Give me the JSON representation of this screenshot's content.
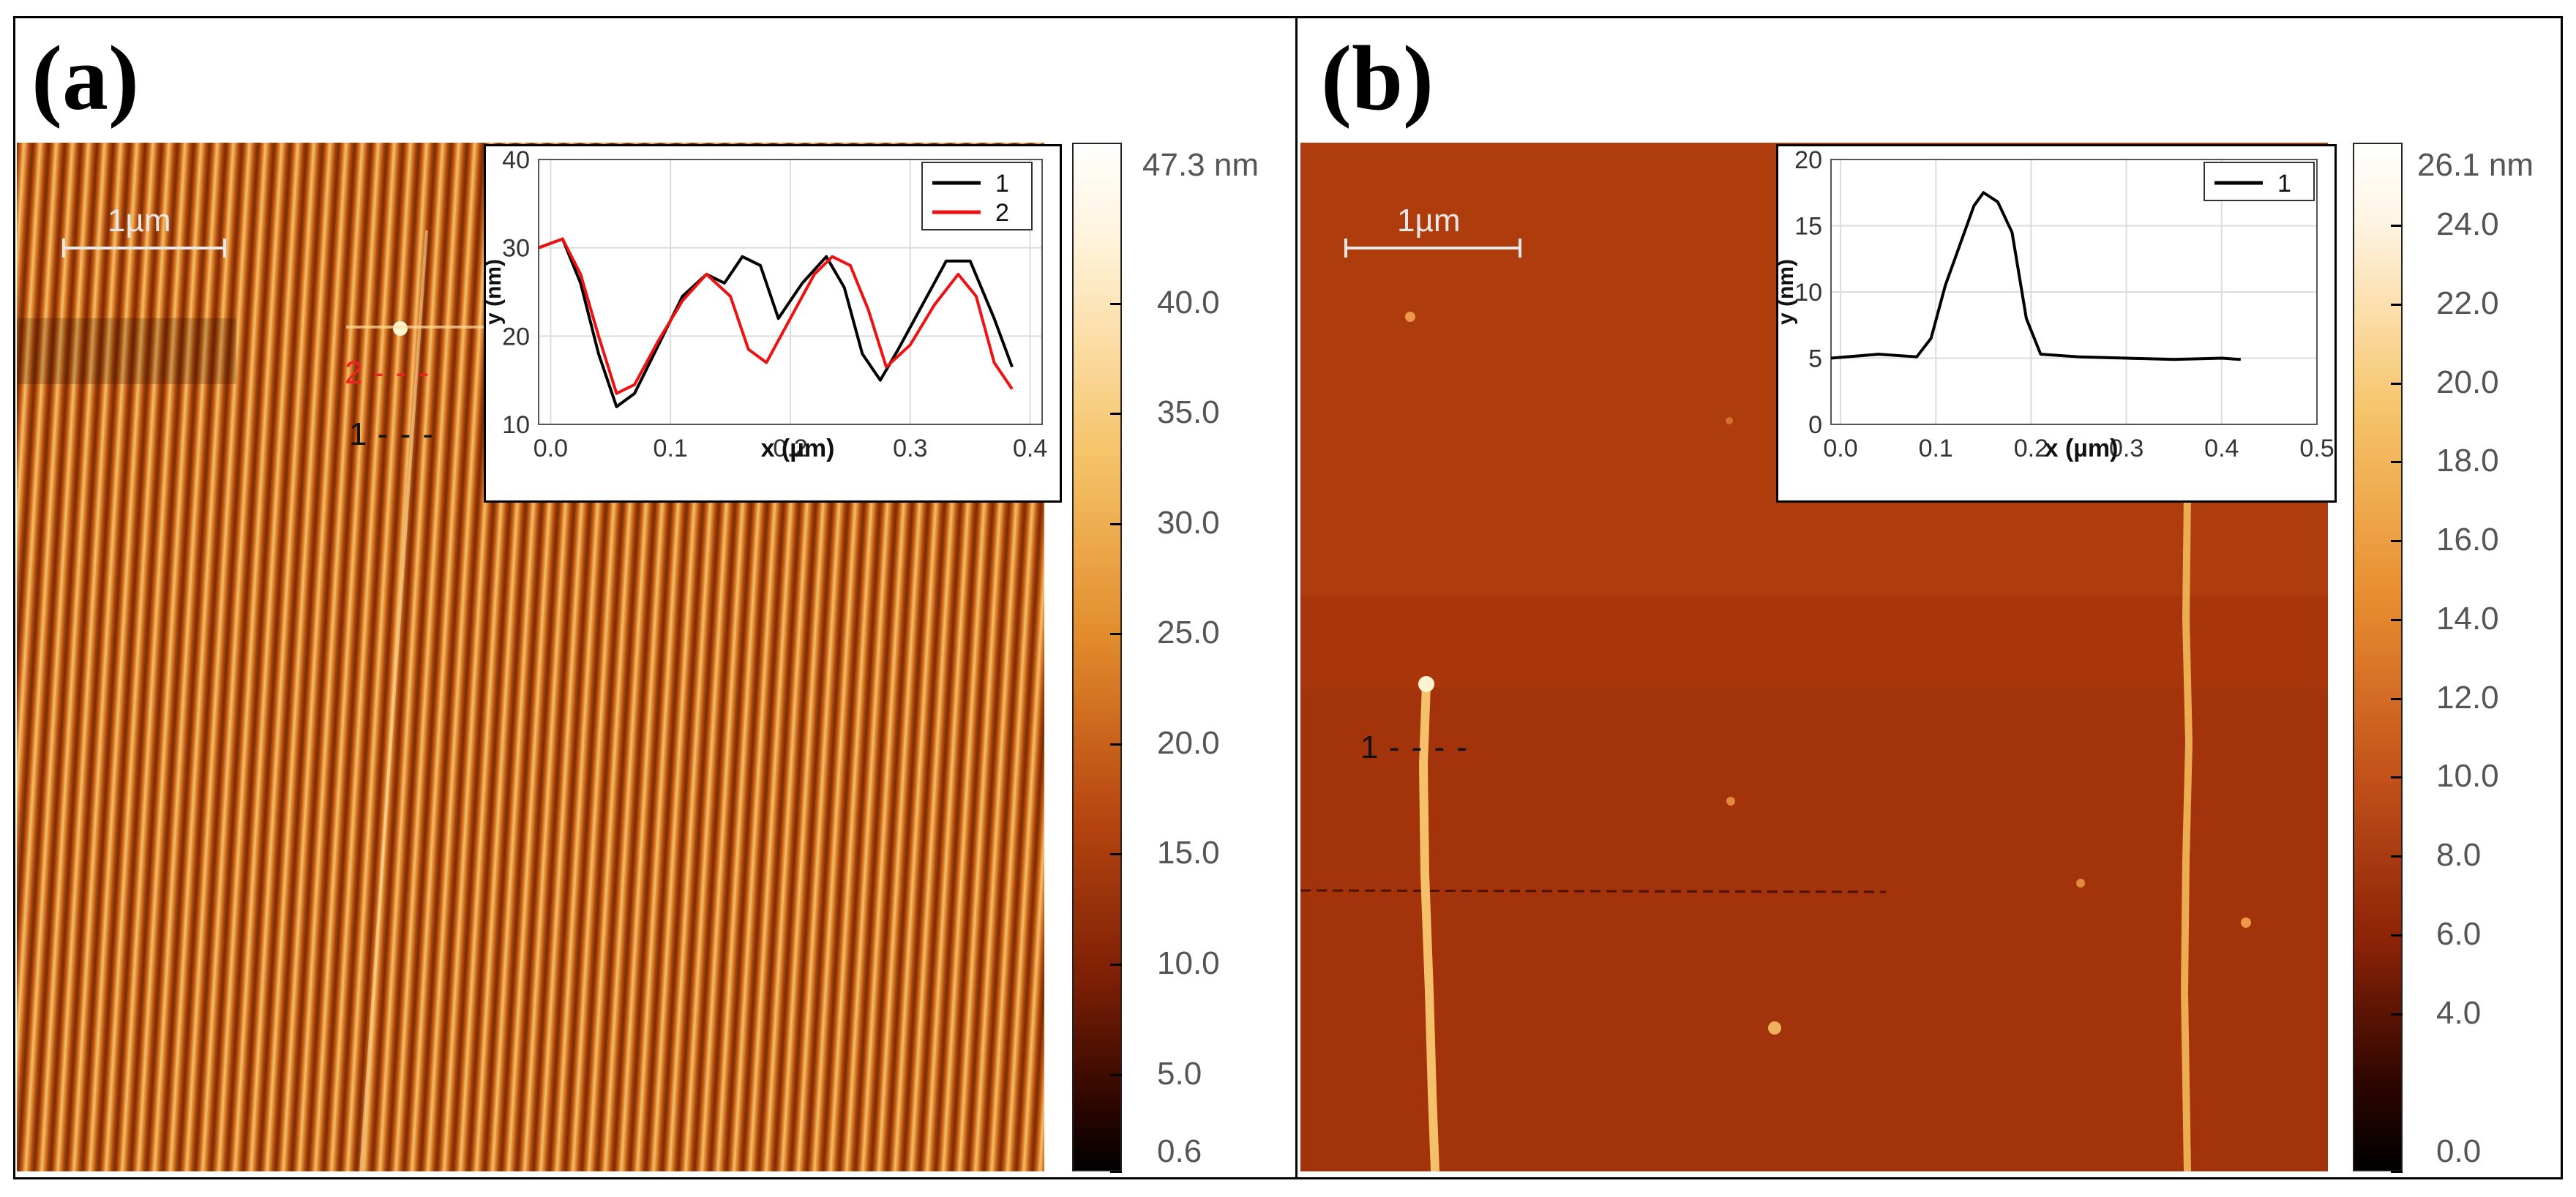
{
  "panel_a": {
    "label": "(a)",
    "scale_bar": "1µm",
    "markers": {
      "m1": "1",
      "m2": "2"
    },
    "colorbar": {
      "max_label": "47.3 nm",
      "ticks": [
        {
          "value": 40.0,
          "label": "40.0"
        },
        {
          "value": 35.0,
          "label": "35.0"
        },
        {
          "value": 30.0,
          "label": "30.0"
        },
        {
          "value": 25.0,
          "label": "25.0"
        },
        {
          "value": 20.0,
          "label": "20.0"
        },
        {
          "value": 15.0,
          "label": "15.0"
        },
        {
          "value": 10.0,
          "label": "10.0"
        },
        {
          "value": 5.0,
          "label": "5.0"
        },
        {
          "value": 0.6,
          "label": "0.6"
        }
      ],
      "min": 0.6,
      "max": 47.3
    }
  },
  "panel_b": {
    "label": "(b)",
    "scale_bar": "1µm",
    "markers": {
      "m1": "1"
    },
    "colorbar": {
      "max_label": "26.1 nm",
      "ticks": [
        {
          "value": 24.0,
          "label": "24.0"
        },
        {
          "value": 22.0,
          "label": "22.0"
        },
        {
          "value": 20.0,
          "label": "20.0"
        },
        {
          "value": 18.0,
          "label": "18.0"
        },
        {
          "value": 16.0,
          "label": "16.0"
        },
        {
          "value": 14.0,
          "label": "14.0"
        },
        {
          "value": 12.0,
          "label": "12.0"
        },
        {
          "value": 10.0,
          "label": "10.0"
        },
        {
          "value": 8.0,
          "label": "8.0"
        },
        {
          "value": 6.0,
          "label": "6.0"
        },
        {
          "value": 4.0,
          "label": "4.0"
        },
        {
          "value": 0.0,
          "label": "0.0"
        }
      ],
      "min": 0.0,
      "max": 26.1
    }
  },
  "chart_data": [
    {
      "type": "line",
      "title": "",
      "xlabel": "x (µm)",
      "ylabel": "y (nm)",
      "xlim": [
        -0.01,
        0.41
      ],
      "ylim": [
        10,
        40
      ],
      "xticks": [
        0.0,
        0.1,
        0.2,
        0.3,
        0.4
      ],
      "xtick_labels": [
        "0.0",
        "0.1",
        "0.2",
        "0.3",
        "0.4"
      ],
      "yticks": [
        10,
        20,
        30,
        40
      ],
      "ytick_labels": [
        "10",
        "20",
        "30",
        "40"
      ],
      "legend": [
        "1",
        "2"
      ],
      "series": [
        {
          "name": "1",
          "color": "#000000",
          "x": [
            -0.01,
            0.01,
            0.025,
            0.04,
            0.055,
            0.07,
            0.09,
            0.11,
            0.13,
            0.145,
            0.16,
            0.175,
            0.19,
            0.21,
            0.23,
            0.245,
            0.26,
            0.275,
            0.29,
            0.31,
            0.33,
            0.35,
            0.37,
            0.385
          ],
          "y": [
            30,
            31,
            26,
            18,
            12,
            13.5,
            19,
            24.5,
            27,
            26,
            29,
            28,
            22,
            26,
            29,
            25.5,
            18,
            15,
            18.5,
            23.5,
            28.5,
            28.5,
            22,
            16.5
          ]
        },
        {
          "name": "2",
          "color": "#ee1111",
          "x": [
            -0.01,
            0.01,
            0.025,
            0.04,
            0.055,
            0.07,
            0.09,
            0.11,
            0.13,
            0.15,
            0.165,
            0.18,
            0.2,
            0.22,
            0.235,
            0.25,
            0.265,
            0.28,
            0.3,
            0.32,
            0.34,
            0.355,
            0.37,
            0.385
          ],
          "y": [
            30,
            31,
            27,
            20,
            13.5,
            14.5,
            19.5,
            24,
            27,
            24.5,
            18.5,
            17,
            22,
            27,
            29,
            28,
            23,
            16.5,
            19,
            23.5,
            27,
            24.5,
            17,
            14
          ]
        }
      ]
    },
    {
      "type": "line",
      "title": "",
      "xlabel": "x (µm)",
      "ylabel": "y (nm)",
      "xlim": [
        -0.01,
        0.5
      ],
      "ylim": [
        0,
        20
      ],
      "xticks": [
        0.0,
        0.1,
        0.2,
        0.3,
        0.4,
        0.5
      ],
      "xtick_labels": [
        "0.0",
        "0.1",
        "0.2",
        "0.3",
        "0.4",
        "0.5"
      ],
      "yticks": [
        0,
        5,
        10,
        15,
        20
      ],
      "ytick_labels": [
        "0",
        "5",
        "10",
        "15",
        "20"
      ],
      "legend": [
        "1"
      ],
      "series": [
        {
          "name": "1",
          "color": "#000000",
          "x": [
            -0.01,
            0.04,
            0.08,
            0.095,
            0.11,
            0.125,
            0.14,
            0.15,
            0.165,
            0.18,
            0.195,
            0.21,
            0.25,
            0.3,
            0.35,
            0.4,
            0.42
          ],
          "y": [
            5,
            5.3,
            5.1,
            6.5,
            10.5,
            13.5,
            16.5,
            17.5,
            16.8,
            14.5,
            8,
            5.3,
            5.1,
            5,
            4.9,
            5,
            4.9
          ]
        }
      ]
    }
  ]
}
